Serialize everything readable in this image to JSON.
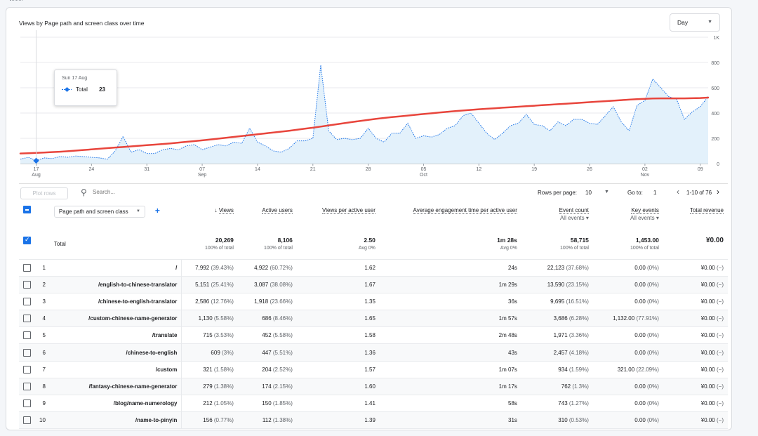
{
  "chart": {
    "title": "Views by Page path and screen class over time",
    "interval_select": "Day",
    "tooltip": {
      "date": "Sun 17 Aug",
      "series": "Total",
      "value": "23"
    }
  },
  "chart_data": {
    "type": "line",
    "title": "Views by Page path and screen class over time",
    "y_ticks": [
      "0",
      "200",
      "400",
      "600",
      "800",
      "1K"
    ],
    "ylim": [
      0,
      1000
    ],
    "x_ticks": [
      {
        "label": "17",
        "sub": "Aug",
        "i": 2
      },
      {
        "label": "24",
        "sub": "",
        "i": 9
      },
      {
        "label": "31",
        "sub": "",
        "i": 16
      },
      {
        "label": "07",
        "sub": "Sep",
        "i": 23
      },
      {
        "label": "14",
        "sub": "",
        "i": 30
      },
      {
        "label": "21",
        "sub": "",
        "i": 37
      },
      {
        "label": "28",
        "sub": "",
        "i": 44
      },
      {
        "label": "05",
        "sub": "Oct",
        "i": 51
      },
      {
        "label": "12",
        "sub": "",
        "i": 58
      },
      {
        "label": "19",
        "sub": "",
        "i": 65
      },
      {
        "label": "26",
        "sub": "",
        "i": 72
      },
      {
        "label": "02",
        "sub": "Nov",
        "i": 79
      },
      {
        "label": "09",
        "sub": "",
        "i": 86
      }
    ],
    "series": [
      {
        "name": "Total",
        "style": "dotted-area",
        "values": [
          35,
          50,
          23,
          45,
          40,
          55,
          50,
          60,
          55,
          50,
          45,
          35,
          100,
          215,
          90,
          110,
          80,
          80,
          110,
          120,
          110,
          140,
          150,
          110,
          130,
          150,
          140,
          170,
          160,
          280,
          170,
          140,
          100,
          90,
          120,
          180,
          180,
          200,
          780,
          260,
          190,
          200,
          190,
          200,
          280,
          200,
          170,
          240,
          240,
          320,
          200,
          220,
          210,
          230,
          280,
          300,
          380,
          400,
          320,
          240,
          190,
          240,
          300,
          320,
          390,
          310,
          300,
          260,
          330,
          300,
          350,
          350,
          320,
          310,
          380,
          450,
          330,
          260,
          460,
          500,
          670,
          600,
          530,
          510,
          350,
          410,
          450,
          530
        ]
      },
      {
        "name": "Trend",
        "style": "red-line",
        "values": [
          80,
          82,
          85,
          88,
          91,
          94,
          98,
          103,
          108,
          112,
          117,
          122,
          127,
          131,
          136,
          141,
          146,
          150,
          155,
          160,
          166,
          172,
          178,
          184,
          190,
          197,
          204,
          211,
          218,
          225,
          232,
          239,
          246,
          253,
          260,
          268,
          276,
          284,
          293,
          302,
          311,
          320,
          329,
          338,
          346,
          354,
          361,
          368,
          374,
          380,
          386,
          392,
          398,
          404,
          410,
          415,
          420,
          425,
          430,
          434,
          438,
          442,
          446,
          450,
          454,
          458,
          462,
          466,
          470,
          474,
          478,
          482,
          486,
          490,
          494,
          498,
          502,
          506,
          510,
          513,
          515,
          516,
          516,
          516,
          516,
          517,
          519,
          522
        ]
      }
    ],
    "tooltip": {
      "date": "Sun 17 Aug",
      "series": "Total",
      "value": 23
    }
  },
  "toolbar": {
    "plot_rows": "Plot rows",
    "search_placeholder": "Search...",
    "rows_per_page_label": "Rows per page:",
    "rows_per_page": "10",
    "goto_label": "Go to:",
    "goto_value": "1",
    "range": "1-10 of 76"
  },
  "table": {
    "dimension": "Page path and screen class",
    "headers": {
      "views": "Views",
      "active_users": "Active users",
      "vpu": "Views per active user",
      "aet": "Average engagement time per active user",
      "event_count": "Event count",
      "event_count_sub": "All events",
      "key_events": "Key events",
      "key_events_sub": "All events",
      "revenue": "Total revenue"
    },
    "total": {
      "label": "Total",
      "views": "20,269",
      "views_pct": "100% of total",
      "users": "8,106",
      "users_pct": "100% of total",
      "vpu": "2.50",
      "vpu_pct": "Avg 0%",
      "aet": "1m 28s",
      "aet_pct": "Avg 0%",
      "events": "58,715",
      "events_pct": "100% of total",
      "key": "1,453.00",
      "key_pct": "100% of total",
      "revenue": "¥0.00"
    },
    "rows": [
      {
        "n": "1",
        "page": "/",
        "views": "7,992",
        "views_pct": "(39.43%)",
        "users": "4,922",
        "users_pct": "(60.72%)",
        "vpu": "1.62",
        "aet": "24s",
        "events": "22,123",
        "events_pct": "(37.68%)",
        "key": "0.00",
        "key_pct": "(0%)",
        "rev": "¥0.00",
        "rev_pct": "(−)"
      },
      {
        "n": "2",
        "page": "/english-to-chinese-translator",
        "views": "5,151",
        "views_pct": "(25.41%)",
        "users": "3,087",
        "users_pct": "(38.08%)",
        "vpu": "1.67",
        "aet": "1m 29s",
        "events": "13,590",
        "events_pct": "(23.15%)",
        "key": "0.00",
        "key_pct": "(0%)",
        "rev": "¥0.00",
        "rev_pct": "(−)"
      },
      {
        "n": "3",
        "page": "/chinese-to-english-translator",
        "views": "2,586",
        "views_pct": "(12.76%)",
        "users": "1,918",
        "users_pct": "(23.66%)",
        "vpu": "1.35",
        "aet": "36s",
        "events": "9,695",
        "events_pct": "(16.51%)",
        "key": "0.00",
        "key_pct": "(0%)",
        "rev": "¥0.00",
        "rev_pct": "(−)"
      },
      {
        "n": "4",
        "page": "/custom-chinese-name-generator",
        "views": "1,130",
        "views_pct": "(5.58%)",
        "users": "686",
        "users_pct": "(8.46%)",
        "vpu": "1.65",
        "aet": "1m 57s",
        "events": "3,686",
        "events_pct": "(6.28%)",
        "key": "1,132.00",
        "key_pct": "(77.91%)",
        "rev": "¥0.00",
        "rev_pct": "(−)"
      },
      {
        "n": "5",
        "page": "/translate",
        "views": "715",
        "views_pct": "(3.53%)",
        "users": "452",
        "users_pct": "(5.58%)",
        "vpu": "1.58",
        "aet": "2m 48s",
        "events": "1,971",
        "events_pct": "(3.36%)",
        "key": "0.00",
        "key_pct": "(0%)",
        "rev": "¥0.00",
        "rev_pct": "(−)"
      },
      {
        "n": "6",
        "page": "/chinese-to-english",
        "views": "609",
        "views_pct": "(3%)",
        "users": "447",
        "users_pct": "(5.51%)",
        "vpu": "1.36",
        "aet": "43s",
        "events": "2,457",
        "events_pct": "(4.18%)",
        "key": "0.00",
        "key_pct": "(0%)",
        "rev": "¥0.00",
        "rev_pct": "(−)"
      },
      {
        "n": "7",
        "page": "/custom",
        "views": "321",
        "views_pct": "(1.58%)",
        "users": "204",
        "users_pct": "(2.52%)",
        "vpu": "1.57",
        "aet": "1m 07s",
        "events": "934",
        "events_pct": "(1.59%)",
        "key": "321.00",
        "key_pct": "(22.09%)",
        "rev": "¥0.00",
        "rev_pct": "(−)"
      },
      {
        "n": "8",
        "page": "/fantasy-chinese-name-generator",
        "views": "279",
        "views_pct": "(1.38%)",
        "users": "174",
        "users_pct": "(2.15%)",
        "vpu": "1.60",
        "aet": "1m 17s",
        "events": "762",
        "events_pct": "(1.3%)",
        "key": "0.00",
        "key_pct": "(0%)",
        "rev": "¥0.00",
        "rev_pct": "(−)"
      },
      {
        "n": "9",
        "page": "/blog/name-numerology",
        "views": "212",
        "views_pct": "(1.05%)",
        "users": "150",
        "users_pct": "(1.85%)",
        "vpu": "1.41",
        "aet": "58s",
        "events": "743",
        "events_pct": "(1.27%)",
        "key": "0.00",
        "key_pct": "(0%)",
        "rev": "¥0.00",
        "rev_pct": "(−)"
      },
      {
        "n": "10",
        "page": "/name-to-pinyin",
        "views": "156",
        "views_pct": "(0.77%)",
        "users": "112",
        "users_pct": "(1.38%)",
        "vpu": "1.39",
        "aet": "31s",
        "events": "310",
        "events_pct": "(0.53%)",
        "key": "0.00",
        "key_pct": "(0%)",
        "rev": "¥0.00",
        "rev_pct": "(−)"
      }
    ]
  },
  "colors": {
    "accent": "#1a73e8",
    "trend": "#e8453c",
    "area": "#e3f1fb"
  }
}
